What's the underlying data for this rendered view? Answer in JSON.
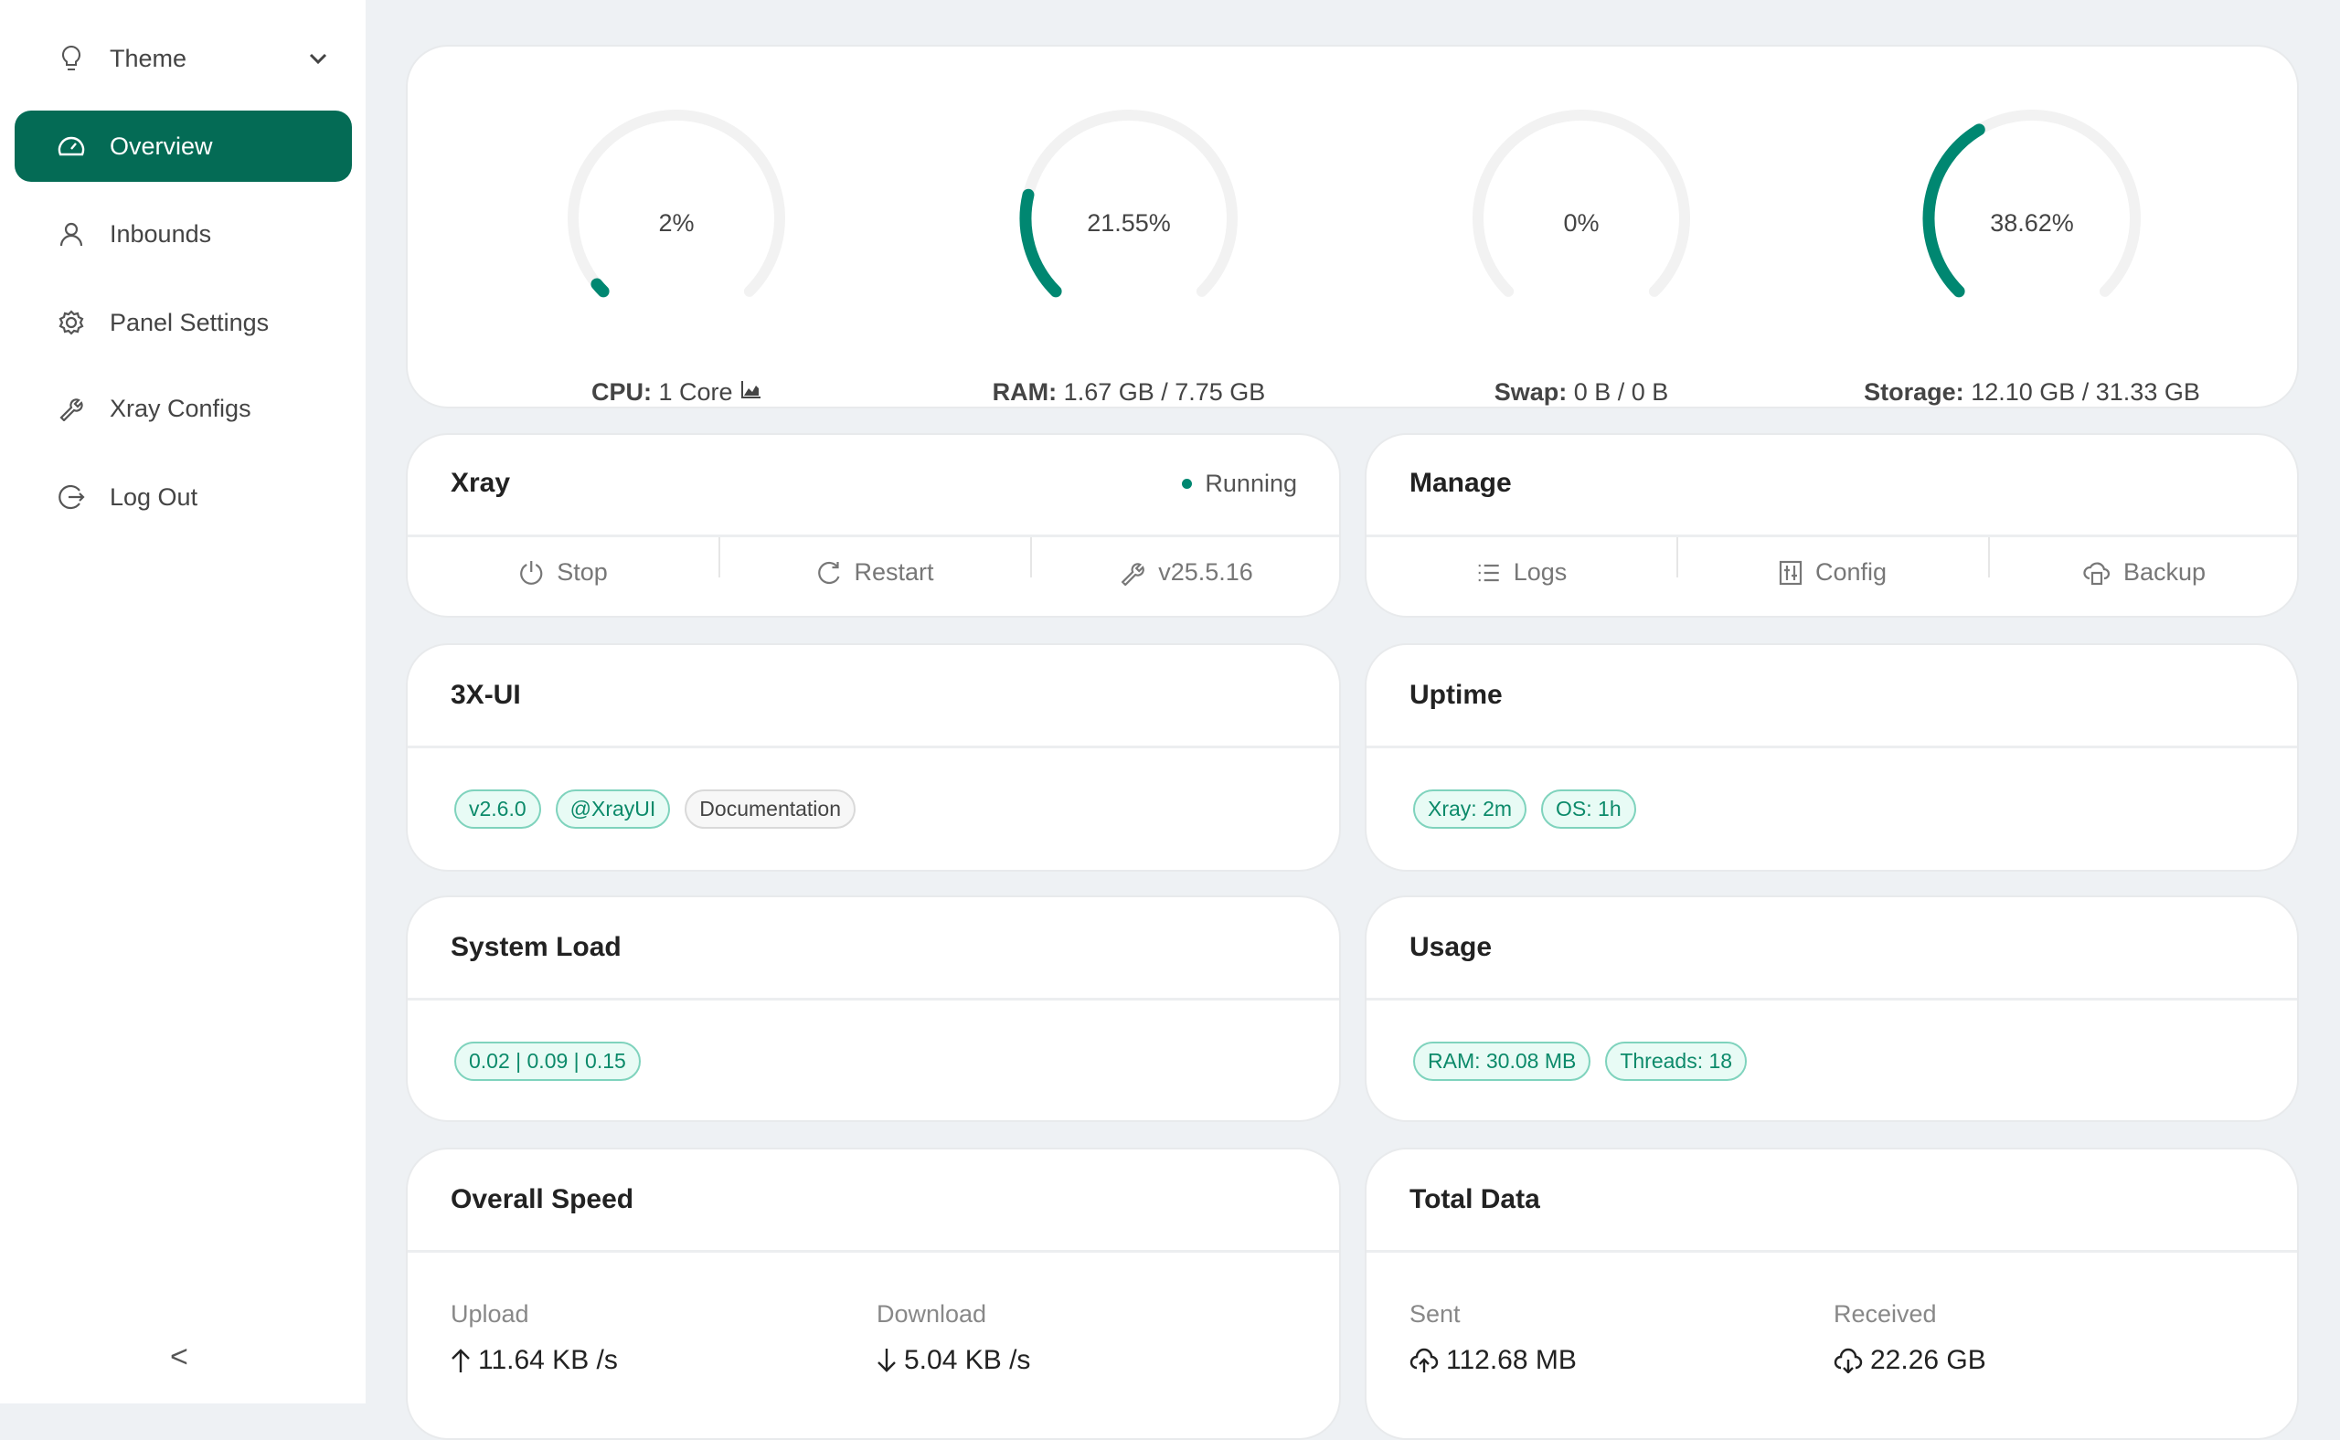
{
  "sidebar": {
    "theme": {
      "label": "Theme",
      "icon": "bulb-icon"
    },
    "items": [
      {
        "label": "Overview",
        "icon": "dashboard-icon",
        "active": true
      },
      {
        "label": "Inbounds",
        "icon": "user-icon"
      },
      {
        "label": "Panel Settings",
        "icon": "gear-icon"
      },
      {
        "label": "Xray Configs",
        "icon": "wrench-icon"
      },
      {
        "label": "Log Out",
        "icon": "logout-icon"
      }
    ],
    "collapse": "<"
  },
  "colors": {
    "accent": "#046b55",
    "gauge": "#008771",
    "gauge_track": "#f2f2f2",
    "tag_text": "#0c8a6a"
  },
  "gauges": [
    {
      "percent": 2,
      "percent_label": "2%",
      "name": "CPU:",
      "detail": "1 Core"
    },
    {
      "percent": 21.55,
      "percent_label": "21.55%",
      "name": "RAM:",
      "detail": "1.67 GB / 7.75 GB"
    },
    {
      "percent": 0,
      "percent_label": "0%",
      "name": "Swap:",
      "detail": "0 B / 0 B"
    },
    {
      "percent": 38.62,
      "percent_label": "38.62%",
      "name": "Storage:",
      "detail": "12.10 GB / 31.33 GB"
    }
  ],
  "xray": {
    "title": "Xray",
    "status": "Running",
    "stop": "Stop",
    "restart": "Restart",
    "version": "v25.5.16"
  },
  "manage": {
    "title": "Manage",
    "logs": "Logs",
    "config": "Config",
    "backup": "Backup"
  },
  "panel": {
    "title": "3X-UI",
    "tags": [
      "v2.6.0",
      "@XrayUI",
      "Documentation"
    ]
  },
  "uptime": {
    "title": "Uptime",
    "tags": [
      "Xray: 2m",
      "OS: 1h"
    ]
  },
  "system_load": {
    "title": "System Load",
    "tags": [
      "0.02 | 0.09 | 0.15"
    ]
  },
  "usage": {
    "title": "Usage",
    "tags": [
      "RAM: 30.08 MB",
      "Threads: 18"
    ]
  },
  "speed": {
    "title": "Overall Speed",
    "upload_label": "Upload",
    "upload": "11.64 KB /s",
    "download_label": "Download",
    "download": "5.04 KB /s"
  },
  "total": {
    "title": "Total Data",
    "sent_label": "Sent",
    "sent": "112.68 MB",
    "received_label": "Received",
    "received": "22.26 GB"
  }
}
